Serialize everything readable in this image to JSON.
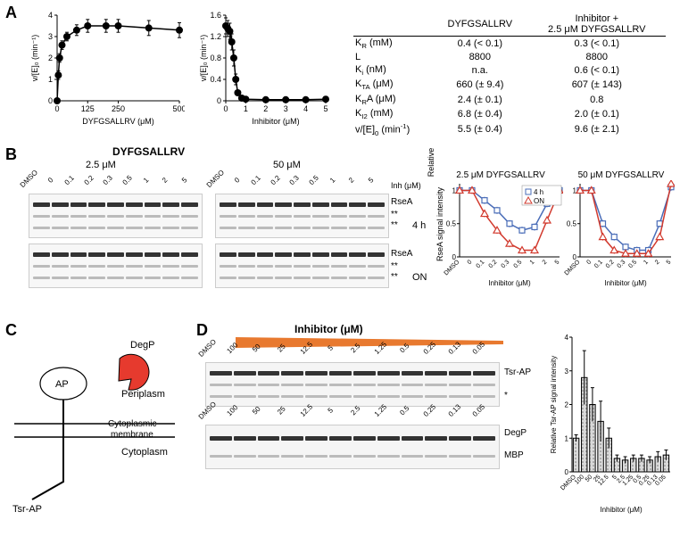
{
  "figure": {
    "labels": {
      "A": "A",
      "B": "B",
      "C": "C",
      "D": "D"
    }
  },
  "A": {
    "chart1": {
      "type": "scatter-line",
      "xlabel": "DYFGSALLRV (μM)",
      "ylabel": "v/[E]₀ (min⁻¹)",
      "xlim": [
        0,
        500
      ],
      "ylim": [
        0,
        4
      ],
      "xticks": [
        0,
        125,
        250,
        500
      ],
      "yticks": [
        0,
        1,
        2,
        3,
        4
      ],
      "x": [
        0,
        5,
        10,
        20,
        40,
        80,
        125,
        200,
        250,
        375,
        500
      ],
      "y": [
        0,
        1.2,
        2.0,
        2.6,
        3.0,
        3.3,
        3.5,
        3.5,
        3.5,
        3.4,
        3.3
      ],
      "yerr": [
        0,
        0.2,
        0.2,
        0.2,
        0.2,
        0.25,
        0.3,
        0.3,
        0.3,
        0.35,
        0.35
      ],
      "marker_color": "#000000",
      "line_color": "#000000",
      "marker_size": 4,
      "line_width": 1.5,
      "bg": "#ffffff",
      "axis_color": "#000000",
      "fontsize": 10
    },
    "chart2": {
      "type": "scatter-line",
      "xlabel": "Inhibitor (μM)",
      "ylabel": "v/[E]₀ (min⁻¹)",
      "xlim": [
        0,
        5
      ],
      "ylim": [
        0,
        1.6
      ],
      "xticks": [
        0,
        1,
        2,
        3,
        4,
        5
      ],
      "yticks": [
        0,
        0.4,
        0.8,
        1.2,
        1.6
      ],
      "x": [
        0,
        0.1,
        0.2,
        0.3,
        0.4,
        0.5,
        0.6,
        0.8,
        1.0,
        2,
        3,
        4,
        5
      ],
      "y": [
        1.4,
        1.35,
        1.3,
        1.1,
        0.8,
        0.4,
        0.15,
        0.05,
        0.03,
        0.02,
        0.02,
        0.02,
        0.03
      ],
      "yerr": [
        0.15,
        0.15,
        0.15,
        0.15,
        0.15,
        0.1,
        0.05,
        0.05,
        0.02,
        0.02,
        0.02,
        0.02,
        0.02
      ],
      "marker_color": "#000000",
      "line_color": "#000000",
      "marker_size": 4,
      "line_width": 1.5,
      "bg": "#ffffff",
      "axis_color": "#000000",
      "fontsize": 10
    },
    "table": {
      "head1": "DYFGSALLRV",
      "head2_line1": "Inhibitor +",
      "head2_line2": "2.5 μM DYFGSALLRV",
      "rows": [
        {
          "p": "K_R (mM)",
          "v1": "0.4 (< 0.1)",
          "v2": "0.3 (< 0.1)"
        },
        {
          "p": "L",
          "v1": "8800",
          "v2": "8800"
        },
        {
          "p": "K_i (nM)",
          "v1": "n.a.",
          "v2": "0.6 (< 0.1)"
        },
        {
          "p": "K_TA (μM)",
          "v1": "660 (± 9.4)",
          "v2": "607 (± 143)"
        },
        {
          "p": "K_RA (μM)",
          "v1": "2.4 (± 0.1)",
          "v2": "0.8"
        },
        {
          "p": "K_I2 (mM)",
          "v1": "6.8 (± 0.4)",
          "v2": "2.0 (± 0.1)"
        },
        {
          "p": "v/[E]_0 (min⁻¹)",
          "v1": "5.5 (± 0.4)",
          "v2": "9.6 (± 2.1)"
        }
      ]
    }
  },
  "B": {
    "title": "DYFGSALLRV",
    "cond1": "2.5 μM",
    "cond2": "50 μM",
    "lane_labels": [
      "DMSO",
      "0",
      "0.1",
      "0.2",
      "0.3",
      "0.5",
      "1",
      "2",
      "5"
    ],
    "inh_label": "Inh (μM)",
    "row_labels": [
      "RseA",
      "**",
      "**",
      "4 h",
      "RseA",
      "**",
      "**",
      "ON"
    ],
    "band_intensity_top": [
      1,
      1,
      0.95,
      0.9,
      0.85,
      0.8,
      0.85,
      0.95,
      1
    ],
    "chart_b_xlabel": "Inhibitor (μM)",
    "chart_b_ylabel_line1": "Relative",
    "chart_b_ylabel_line2": "RseA signal intensity",
    "chart_b_title1": "2.5 μM DYFGSALLRV",
    "chart_b_title2": "50 μM DYFGSALLRV",
    "legend_4h": "4 h",
    "legend_ON": "ON",
    "chart_b1": {
      "x_cat": [
        "DMSO",
        "0",
        "0.1",
        "0.2",
        "0.3",
        "0.5",
        "1",
        "2",
        "5"
      ],
      "y_4h": [
        1.0,
        1.0,
        0.85,
        0.7,
        0.5,
        0.4,
        0.45,
        0.8,
        1.0
      ],
      "y_ON": [
        1.0,
        1.0,
        0.65,
        0.4,
        0.2,
        0.1,
        0.1,
        0.55,
        1.0
      ],
      "ylim": [
        0,
        1.1
      ],
      "color_4h": "#4a6db8",
      "color_ON": "#d23a2e",
      "marker_4h": "square",
      "marker_ON": "triangle"
    },
    "chart_b2": {
      "x_cat": [
        "DMSO",
        "0",
        "0.1",
        "0.2",
        "0.3",
        "0.5",
        "1",
        "2",
        "5"
      ],
      "y_4h": [
        1.0,
        1.0,
        0.5,
        0.3,
        0.15,
        0.1,
        0.1,
        0.5,
        1.05
      ],
      "y_ON": [
        1.0,
        1.0,
        0.3,
        0.1,
        0.05,
        0.05,
        0.05,
        0.3,
        1.1
      ],
      "ylim": [
        0,
        1.1
      ],
      "color_4h": "#4a6db8",
      "color_ON": "#d23a2e"
    }
  },
  "C": {
    "labels": {
      "degp": "DegP",
      "ap": "AP",
      "periplasm": "Periplasm",
      "cytomembrane": "Cytoplasmic\nmembrane",
      "cytoplasm": "Cytoplasm",
      "tsrap": "Tsr-AP"
    },
    "degp_color": "#e63a2e",
    "ap_color": "#ffffff",
    "membrane_line_color": "#000000"
  },
  "D": {
    "title": "Inhibitor (μM)",
    "lane_labels": [
      "DMSO",
      "100",
      "50",
      "25",
      "12.5",
      "5",
      "2.5",
      "1.25",
      "0.5",
      "0.25",
      "0.13",
      "0.05"
    ],
    "row_labels_top": [
      "Tsr-AP",
      "*"
    ],
    "row_labels_bot": [
      "DegP",
      "MBP"
    ],
    "wedge_color": "#e8792f",
    "chart_d": {
      "type": "bar",
      "ylabel": "Relative Tsr-AP signal intensity",
      "xlabel": "Inhibitor (μM)",
      "x_cat": [
        "DMSO",
        "100",
        "50",
        "25",
        "12.5",
        "5",
        "2.5",
        "1.25",
        "0.5",
        "0.25",
        "0.13",
        "0.05"
      ],
      "values": [
        1.0,
        2.8,
        2.0,
        1.5,
        1.0,
        0.4,
        0.35,
        0.4,
        0.4,
        0.35,
        0.45,
        0.5
      ],
      "yerr": [
        0.1,
        0.8,
        0.5,
        0.6,
        0.3,
        0.1,
        0.1,
        0.1,
        0.1,
        0.1,
        0.15,
        0.15
      ],
      "ylim": [
        0,
        4
      ],
      "bar_color": "#d9d9d9",
      "bar_pattern": "dots",
      "bar_border": "#000000"
    }
  }
}
